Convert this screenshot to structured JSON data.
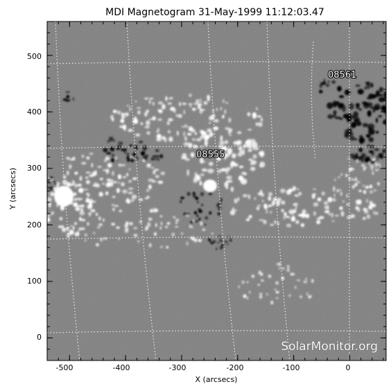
{
  "figure": {
    "title": "MDI Magnetogram 31-May-1999 11:12:03.47",
    "x_label": "X (arcsecs)",
    "y_label": "Y (arcsecs)",
    "x_ticks": [
      "-500",
      "-400",
      "-300",
      "-200",
      "-100",
      "0"
    ],
    "y_ticks": [
      "0",
      "100",
      "200",
      "300",
      "400",
      "500"
    ],
    "watermark": "SolarMonitor.org",
    "colors": {
      "background_gray": "#7d7d7d",
      "positive_polarity": "#ffffff",
      "negative_polarity": "#000000",
      "grid": "#ffffff"
    }
  },
  "chart_data": {
    "type": "heatmap",
    "title": "MDI Magnetogram 31-May-1999 11:12:03.47",
    "xlabel": "X (arcsecs)",
    "ylabel": "Y (arcsecs)",
    "xlim": [
      -540,
      65
    ],
    "ylim": [
      -40,
      560
    ],
    "x_ticks": [
      -500,
      -400,
      -300,
      -200,
      -100,
      0
    ],
    "y_ticks": [
      0,
      100,
      200,
      300,
      400,
      500
    ],
    "grid": true,
    "active_regions": [
      {
        "label": "08555",
        "x": -263,
        "y": 330
      },
      {
        "label": "08561",
        "x": 0,
        "y": 462
      }
    ]
  },
  "active_regions": [
    {
      "label": "08555"
    },
    {
      "label": "08561"
    }
  ]
}
